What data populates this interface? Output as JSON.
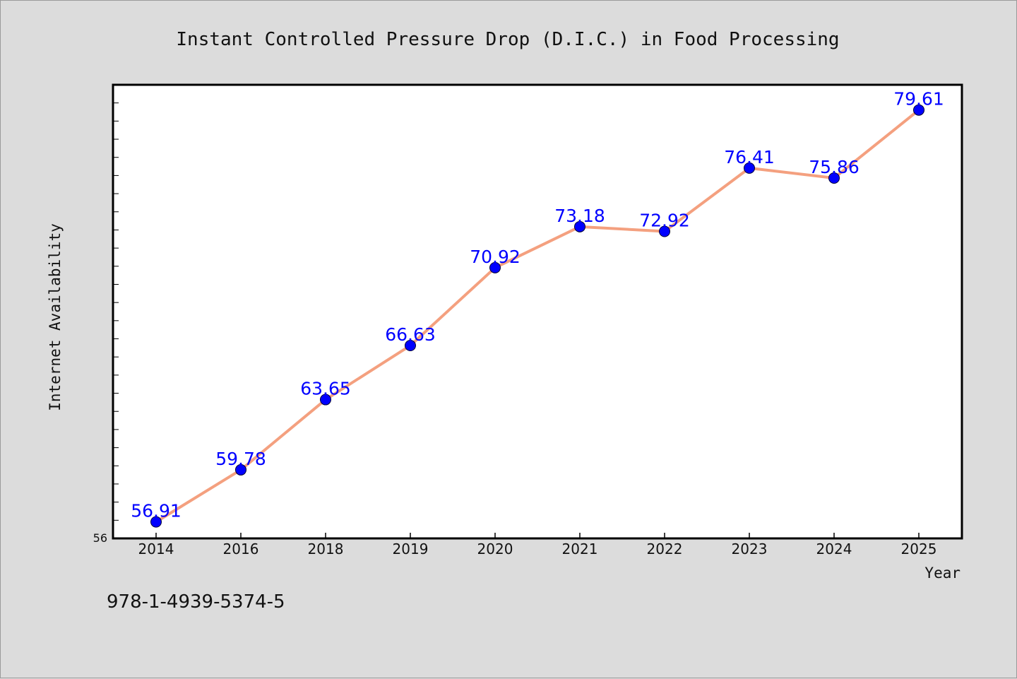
{
  "chart_data": {
    "type": "line",
    "title": "Instant Controlled Pressure Drop (D.I.C.) in Food Processing",
    "xlabel": "Year",
    "ylabel": "Internet Availability",
    "categories": [
      "2014",
      "2016",
      "2018",
      "2019",
      "2020",
      "2021",
      "2022",
      "2023",
      "2024",
      "2025"
    ],
    "series": [
      {
        "values": [
          56.91,
          59.78,
          63.65,
          66.63,
          70.92,
          73.18,
          72.92,
          76.41,
          75.86,
          79.61
        ]
      }
    ],
    "data_labels": [
      "56.91",
      "59.78",
      "63.65",
      "66.63",
      "70.92",
      "73.18",
      "72.92",
      "76.41",
      "75.86",
      "79.61"
    ],
    "y_tick_labels": [
      "56"
    ],
    "ylim": [
      56,
      81
    ],
    "grid": false,
    "legend": "none",
    "colors": {
      "line": "#f4a07f",
      "marker": "#0000ff",
      "data_label": "#0000ff",
      "background": "#dcdcdc",
      "plot_background": "#ffffff"
    }
  },
  "footer": {
    "isbn": "978-1-4939-5374-5"
  }
}
